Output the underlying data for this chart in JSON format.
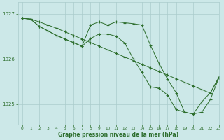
{
  "bg_color": "#cce8e8",
  "grid_color": "#aacccc",
  "line_color": "#2d6e2d",
  "xlabel": "Graphe pression niveau de la mer (hPa)",
  "ylim": [
    1024.55,
    1027.25
  ],
  "xlim": [
    -0.5,
    23
  ],
  "yticks": [
    1025,
    1026,
    1027
  ],
  "xticks": [
    0,
    1,
    2,
    3,
    4,
    5,
    6,
    7,
    8,
    9,
    10,
    11,
    12,
    13,
    14,
    15,
    16,
    17,
    18,
    19,
    20,
    21,
    22,
    23
  ],
  "series": [
    {
      "x": [
        0,
        1,
        2,
        3,
        4,
        5,
        6,
        7,
        8,
        9,
        10,
        11,
        12,
        13,
        14,
        15,
        16,
        17,
        18,
        19,
        20,
        21,
        22,
        23
      ],
      "y": [
        1026.9,
        1026.88,
        1026.82,
        1026.75,
        1026.68,
        1026.6,
        1026.52,
        1026.44,
        1026.36,
        1026.28,
        1026.2,
        1026.12,
        1026.04,
        1025.96,
        1025.88,
        1025.8,
        1025.72,
        1025.64,
        1025.56,
        1025.48,
        1025.4,
        1025.32,
        1025.24,
        1025.6
      ]
    },
    {
      "x": [
        0,
        1,
        2,
        3,
        4,
        5,
        6,
        7,
        8,
        9,
        10,
        11,
        12,
        13,
        14,
        15,
        16,
        17,
        18,
        19,
        20,
        21,
        22,
        23
      ],
      "y": [
        1026.9,
        1026.88,
        1026.72,
        1026.62,
        1026.52,
        1026.44,
        1026.36,
        1026.28,
        1026.75,
        1026.82,
        1026.75,
        1026.82,
        1026.8,
        1026.78,
        1026.75,
        1026.3,
        1025.9,
        1025.55,
        1025.25,
        1024.82,
        1024.78,
        1024.82,
        1025.1,
        1025.58
      ]
    },
    {
      "x": [
        0,
        1,
        2,
        3,
        4,
        5,
        6,
        7,
        8,
        9,
        10,
        11,
        12,
        13,
        14,
        15,
        16,
        17,
        18,
        19,
        20,
        21,
        22,
        23
      ],
      "y": [
        1026.9,
        1026.88,
        1026.72,
        1026.62,
        1026.52,
        1026.44,
        1026.36,
        1026.28,
        1026.45,
        1026.55,
        1026.55,
        1026.5,
        1026.35,
        1026.0,
        1025.7,
        1025.38,
        1025.35,
        1025.2,
        1024.88,
        1024.82,
        1024.78,
        1025.05,
        1025.25,
        1025.58
      ]
    }
  ]
}
